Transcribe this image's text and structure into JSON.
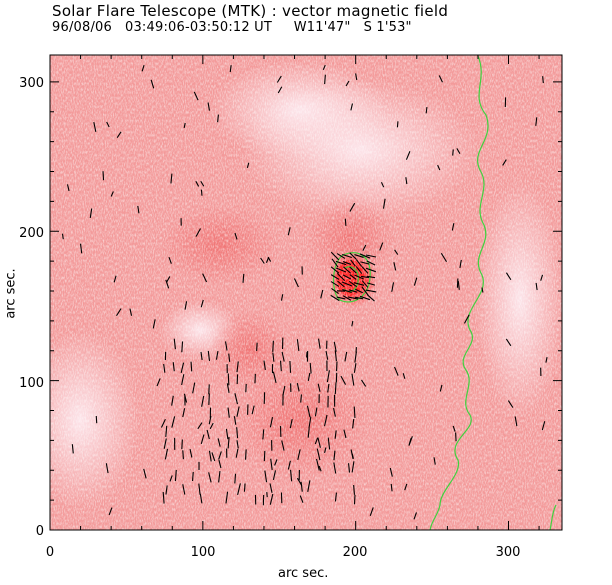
{
  "figure": {
    "title": "Solar Flare Telescope (MTK) : vector magnetic field",
    "subtitle": "96/08/06   03:49:06-03:50:12 UT     W11'47\"   S 1'53\""
  },
  "axes": {
    "xlabel": "arc sec.",
    "ylabel": "arc sec.",
    "x_ticks": [
      "0",
      "100",
      "200",
      "300"
    ],
    "y_ticks": [
      "0",
      "100",
      "200",
      "300"
    ],
    "xlim": [
      0,
      335
    ],
    "ylim": [
      0,
      318
    ]
  },
  "colors": {
    "background": "#f39a9a",
    "highlight": "#ff2a2a",
    "contour": "#3fd23f",
    "vectors": "#000000"
  }
}
